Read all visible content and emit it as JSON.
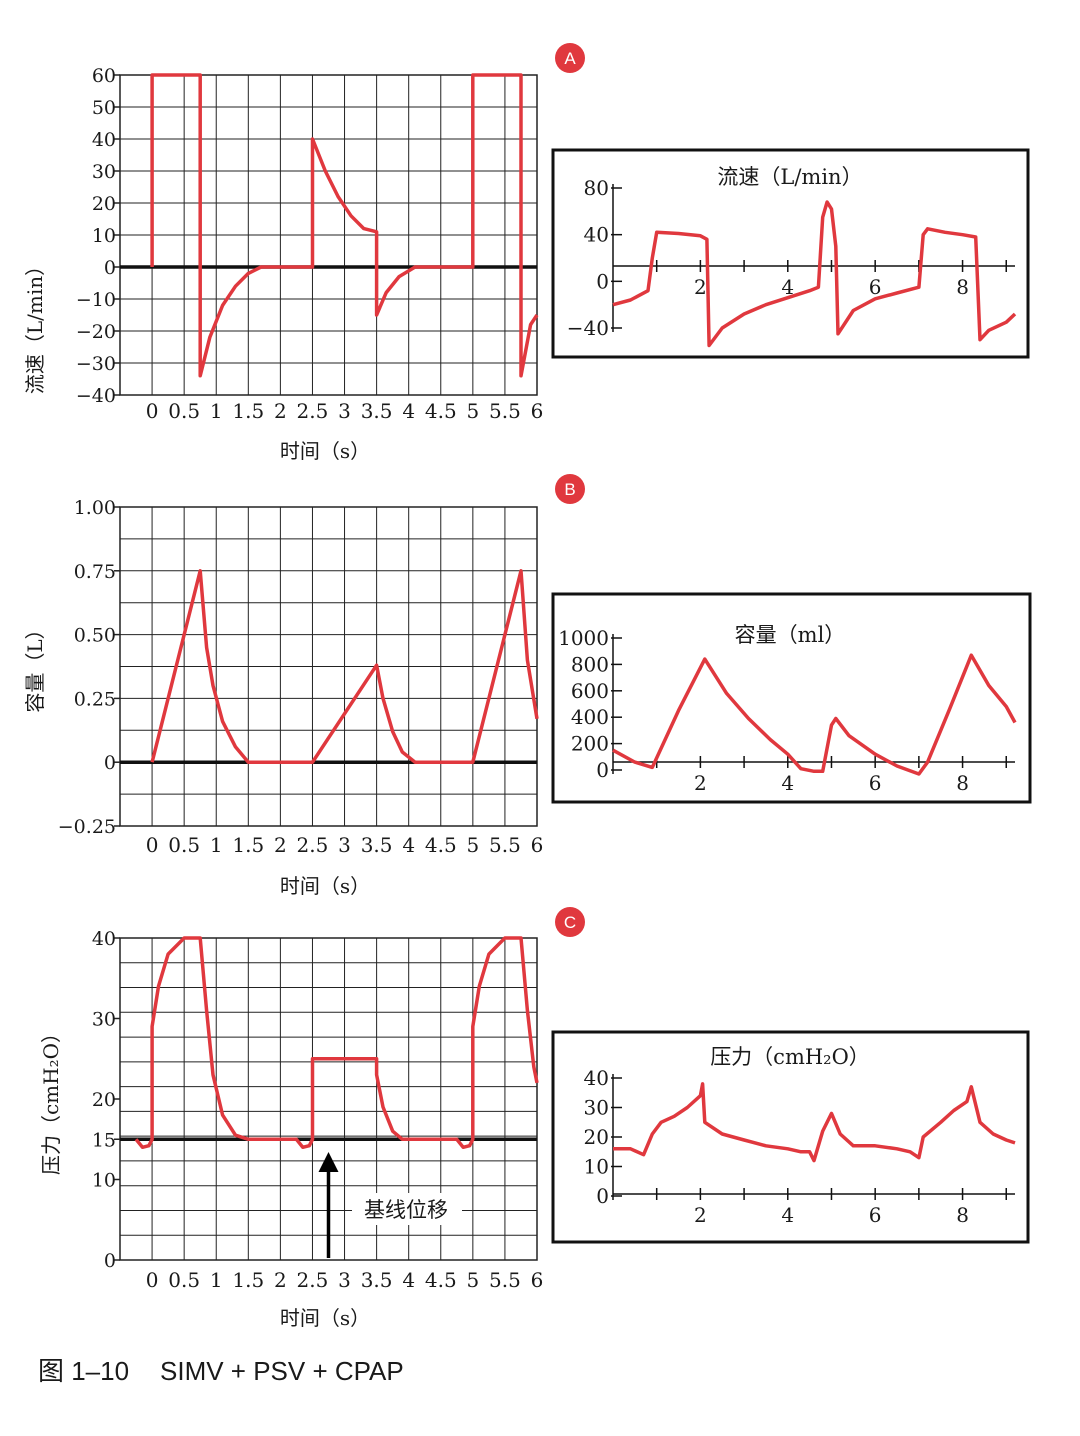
{
  "caption": {
    "label": "图 1–10",
    "text": "SIMV + PSV + CPAP"
  },
  "colors": {
    "waveform": "#e0383e",
    "baseline": "#111111",
    "grid": "#222222",
    "badge": "#e0383e"
  },
  "chart_data": [
    {
      "id": "A-left",
      "badge": "A",
      "type": "line",
      "ylabel": "流速（L/min）",
      "xlabel": "时间（s）",
      "xlim": [
        -0.5,
        6
      ],
      "ylim": [
        -40,
        60
      ],
      "xticks": [
        "0",
        "0.5",
        "1",
        "1.5",
        "2",
        "2.5",
        "3",
        "3.5",
        "4",
        "4.5",
        "5",
        "5.5",
        "6"
      ],
      "yticks": [
        "60",
        "50",
        "40",
        "30",
        "20",
        "10",
        "0",
        "−10",
        "−20",
        "−30",
        "−40"
      ],
      "baseline": 0,
      "series": [
        {
          "name": "flow",
          "points": [
            [
              0,
              0
            ],
            [
              0,
              60
            ],
            [
              0.75,
              60
            ],
            [
              0.75,
              -34
            ],
            [
              0.9,
              -22
            ],
            [
              1.1,
              -12
            ],
            [
              1.3,
              -6
            ],
            [
              1.5,
              -2
            ],
            [
              1.7,
              0
            ],
            [
              2.5,
              0
            ],
            [
              2.5,
              40
            ],
            [
              2.7,
              30
            ],
            [
              2.9,
              22
            ],
            [
              3.1,
              16
            ],
            [
              3.3,
              12
            ],
            [
              3.5,
              11
            ],
            [
              3.5,
              -15
            ],
            [
              3.65,
              -8
            ],
            [
              3.85,
              -3
            ],
            [
              4.1,
              0
            ],
            [
              5,
              0
            ],
            [
              5,
              60
            ],
            [
              5.75,
              60
            ],
            [
              5.75,
              -34
            ],
            [
              5.9,
              -18
            ],
            [
              6,
              -15
            ]
          ]
        }
      ]
    },
    {
      "id": "A-right",
      "type": "line",
      "title": "流速（L/min）",
      "xlim": [
        0,
        9.2
      ],
      "ylim": [
        -60,
        90
      ],
      "xticks": [
        "2",
        "4",
        "6",
        "8"
      ],
      "yticks": [
        "80",
        "40",
        "0",
        "−40"
      ],
      "series": [
        {
          "name": "flow",
          "points": [
            [
              0,
              -20
            ],
            [
              0.4,
              -16
            ],
            [
              0.8,
              -8
            ],
            [
              0.9,
              20
            ],
            [
              1,
              42
            ],
            [
              1.5,
              41
            ],
            [
              2,
              39
            ],
            [
              2.15,
              36
            ],
            [
              2.2,
              -55
            ],
            [
              2.5,
              -40
            ],
            [
              3,
              -28
            ],
            [
              3.5,
              -20
            ],
            [
              4,
              -14
            ],
            [
              4.5,
              -8
            ],
            [
              4.7,
              -5
            ],
            [
              4.8,
              55
            ],
            [
              4.9,
              68
            ],
            [
              5,
              62
            ],
            [
              5.1,
              30
            ],
            [
              5.15,
              -45
            ],
            [
              5.5,
              -25
            ],
            [
              6,
              -15
            ],
            [
              6.5,
              -10
            ],
            [
              7,
              -5
            ],
            [
              7.1,
              40
            ],
            [
              7.2,
              45
            ],
            [
              7.6,
              42
            ],
            [
              8,
              40
            ],
            [
              8.3,
              38
            ],
            [
              8.4,
              -50
            ],
            [
              8.6,
              -42
            ],
            [
              9,
              -35
            ],
            [
              9.2,
              -28
            ]
          ]
        }
      ]
    },
    {
      "id": "B-left",
      "badge": "B",
      "type": "line",
      "ylabel": "容量（L）",
      "xlabel": "时间（s）",
      "xlim": [
        -0.5,
        6
      ],
      "ylim": [
        -0.25,
        1.0
      ],
      "xticks": [
        "0",
        "0.5",
        "1",
        "1.5",
        "2",
        "2.5",
        "3",
        "3.5",
        "4",
        "4.5",
        "5",
        "5.5",
        "6"
      ],
      "yticks": [
        "1.00",
        "0.75",
        "0.50",
        "0.25",
        "0",
        "−0.25"
      ],
      "baseline": 0,
      "series": [
        {
          "name": "volume",
          "points": [
            [
              0,
              0
            ],
            [
              0.75,
              0.75
            ],
            [
              0.85,
              0.45
            ],
            [
              0.95,
              0.3
            ],
            [
              1.1,
              0.16
            ],
            [
              1.3,
              0.06
            ],
            [
              1.5,
              0
            ],
            [
              2.5,
              0
            ],
            [
              3.5,
              0.38
            ],
            [
              3.6,
              0.25
            ],
            [
              3.75,
              0.12
            ],
            [
              3.9,
              0.04
            ],
            [
              4.1,
              0
            ],
            [
              5,
              0
            ],
            [
              5.75,
              0.75
            ],
            [
              5.85,
              0.4
            ],
            [
              6,
              0.17
            ]
          ]
        }
      ]
    },
    {
      "id": "B-right",
      "type": "line",
      "title": "容量（ml）",
      "xlim": [
        0,
        9.2
      ],
      "ylim": [
        -50,
        1050
      ],
      "xticks": [
        "2",
        "4",
        "6",
        "8"
      ],
      "yticks": [
        "1000",
        "800",
        "600",
        "400",
        "200",
        "0"
      ],
      "series": [
        {
          "name": "volume",
          "points": [
            [
              0,
              150
            ],
            [
              0.5,
              60
            ],
            [
              0.9,
              20
            ],
            [
              1.5,
              450
            ],
            [
              2.1,
              840
            ],
            [
              2.6,
              580
            ],
            [
              3.1,
              390
            ],
            [
              3.6,
              230
            ],
            [
              4,
              120
            ],
            [
              4.3,
              10
            ],
            [
              4.6,
              -10
            ],
            [
              4.8,
              -10
            ],
            [
              5,
              340
            ],
            [
              5.1,
              390
            ],
            [
              5.4,
              260
            ],
            [
              6,
              120
            ],
            [
              6.5,
              30
            ],
            [
              7,
              -30
            ],
            [
              7.2,
              60
            ],
            [
              7.7,
              460
            ],
            [
              8.2,
              870
            ],
            [
              8.6,
              640
            ],
            [
              9,
              480
            ],
            [
              9.2,
              360
            ]
          ]
        }
      ]
    },
    {
      "id": "C-left",
      "badge": "C",
      "type": "line",
      "ylabel": "压力（cmH₂O）",
      "xlabel": "时间（s）",
      "xlim": [
        -0.5,
        6
      ],
      "ylim": [
        0,
        40
      ],
      "xticks": [
        "0",
        "0.5",
        "1",
        "1.5",
        "2",
        "2.5",
        "3",
        "3.5",
        "4",
        "4.5",
        "5",
        "5.5",
        "6"
      ],
      "yticks": [
        "40",
        "30",
        "20",
        "15",
        "10",
        "0"
      ],
      "baseline": 15,
      "annotation": "基线位移",
      "series": [
        {
          "name": "pressure",
          "points": [
            [
              -0.25,
              15
            ],
            [
              -0.15,
              14
            ],
            [
              -0.05,
              14.2
            ],
            [
              0,
              15
            ],
            [
              0,
              29
            ],
            [
              0.1,
              34
            ],
            [
              0.25,
              38
            ],
            [
              0.5,
              40
            ],
            [
              0.75,
              40
            ],
            [
              0.85,
              31
            ],
            [
              0.95,
              23
            ],
            [
              1.1,
              18
            ],
            [
              1.3,
              15.5
            ],
            [
              1.5,
              15
            ],
            [
              2.25,
              15
            ],
            [
              2.35,
              14
            ],
            [
              2.45,
              14.2
            ],
            [
              2.5,
              15
            ],
            [
              2.5,
              25
            ],
            [
              3.5,
              25
            ],
            [
              3.5,
              23
            ],
            [
              3.6,
              19
            ],
            [
              3.75,
              16
            ],
            [
              3.9,
              15
            ],
            [
              4.75,
              15
            ],
            [
              4.85,
              14
            ],
            [
              4.95,
              14.2
            ],
            [
              5,
              15
            ],
            [
              5,
              29
            ],
            [
              5.1,
              34
            ],
            [
              5.25,
              38
            ],
            [
              5.5,
              40
            ],
            [
              5.75,
              40
            ],
            [
              5.85,
              31
            ],
            [
              5.95,
              24
            ],
            [
              6,
              22
            ]
          ]
        }
      ]
    },
    {
      "id": "C-right",
      "type": "line",
      "title": "压力（cmH₂O）",
      "xlim": [
        0,
        9.2
      ],
      "ylim": [
        0,
        42
      ],
      "xticks": [
        "2",
        "4",
        "6",
        "8"
      ],
      "yticks": [
        "40",
        "30",
        "20",
        "10",
        "0"
      ],
      "series": [
        {
          "name": "pressure",
          "points": [
            [
              0,
              16
            ],
            [
              0.4,
              16
            ],
            [
              0.7,
              14
            ],
            [
              0.9,
              21
            ],
            [
              1.1,
              25
            ],
            [
              1.4,
              27
            ],
            [
              1.7,
              30
            ],
            [
              2,
              34
            ],
            [
              2.05,
              38
            ],
            [
              2.1,
              25
            ],
            [
              2.5,
              21
            ],
            [
              3,
              19
            ],
            [
              3.5,
              17
            ],
            [
              4,
              16
            ],
            [
              4.3,
              15
            ],
            [
              4.5,
              15
            ],
            [
              4.6,
              12
            ],
            [
              4.8,
              22
            ],
            [
              5,
              28
            ],
            [
              5.2,
              21
            ],
            [
              5.5,
              17
            ],
            [
              6,
              17
            ],
            [
              6.5,
              16
            ],
            [
              6.8,
              15
            ],
            [
              7,
              13
            ],
            [
              7.1,
              20
            ],
            [
              7.5,
              25
            ],
            [
              7.8,
              29
            ],
            [
              8.1,
              32
            ],
            [
              8.2,
              37
            ],
            [
              8.4,
              25
            ],
            [
              8.7,
              21
            ],
            [
              9,
              19
            ],
            [
              9.2,
              18
            ]
          ]
        }
      ]
    }
  ]
}
